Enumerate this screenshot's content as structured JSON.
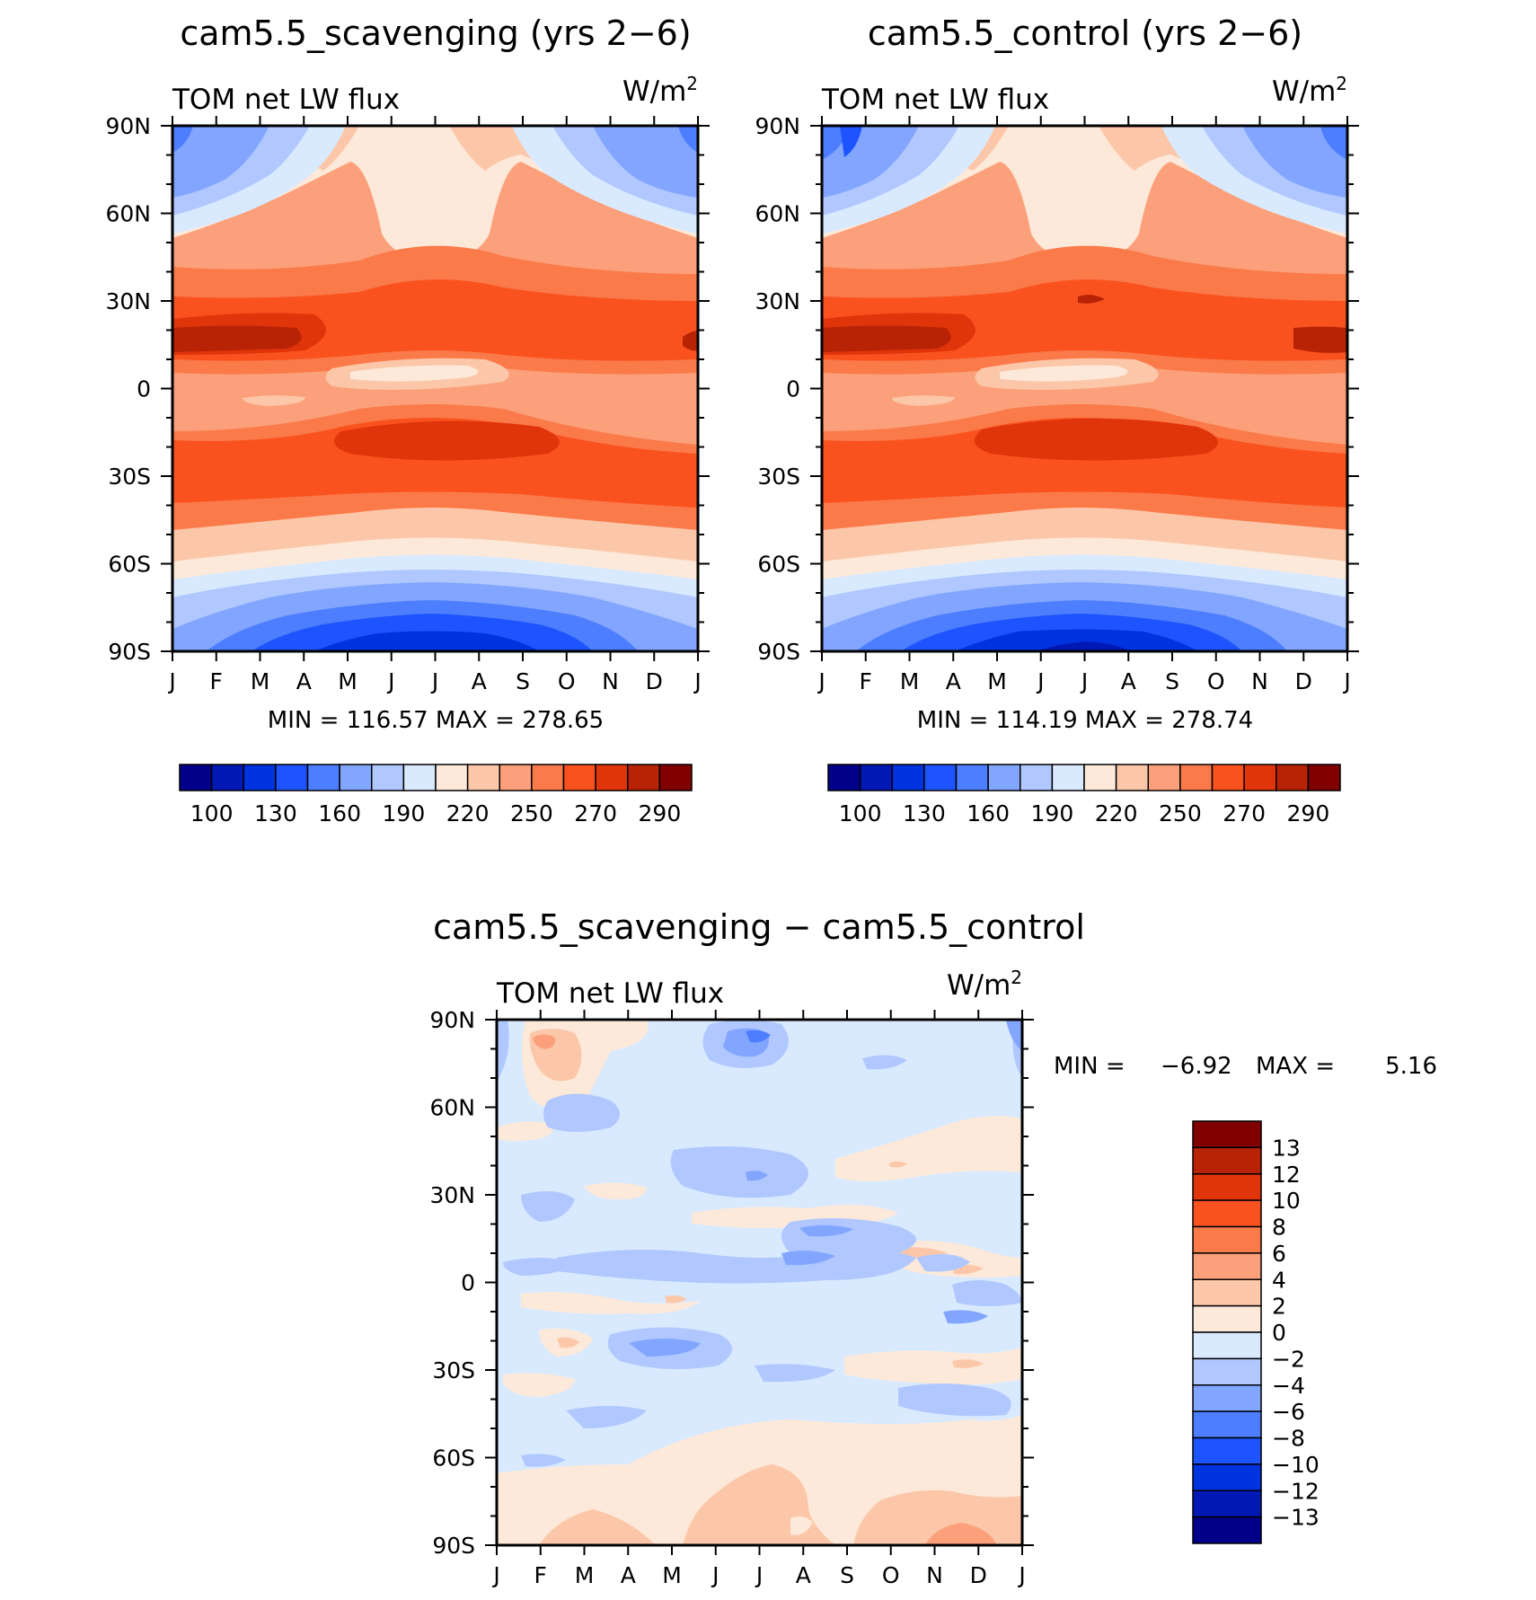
{
  "months": [
    "J",
    "F",
    "M",
    "A",
    "M",
    "J",
    "J",
    "A",
    "S",
    "O",
    "N",
    "D",
    "J"
  ],
  "lat_labels": [
    "90N",
    "60N",
    "30N",
    "0",
    "30S",
    "60S",
    "90S"
  ],
  "absolute_palette": [
    "#00008b",
    "#0019b4",
    "#0033e0",
    "#1e54ff",
    "#4d7eff",
    "#82a5ff",
    "#b0c8ff",
    "#d9eaff",
    "#fde9d9",
    "#fcc7a9",
    "#fba07a",
    "#fb7a4a",
    "#fa521f",
    "#e0340a",
    "#b82306",
    "#800000"
  ],
  "diff_palette": [
    "#00008b",
    "#0019b4",
    "#0033e0",
    "#1e54ff",
    "#4d7eff",
    "#82a5ff",
    "#b0c8ff",
    "#d9eaff",
    "#fde9d9",
    "#fcc7a9",
    "#fba07a",
    "#fb7a4a",
    "#fa521f",
    "#e0340a",
    "#b82306",
    "#800000"
  ],
  "chart_data": [
    {
      "type": "heatmap",
      "title": "cam5.5_scavenging (yrs 2−6)",
      "left_label": "TOM net LW flux",
      "units_base": "W/m",
      "units_exp": "2",
      "x_categories": [
        "J",
        "F",
        "M",
        "A",
        "M",
        "J",
        "J",
        "A",
        "S",
        "O",
        "N",
        "D",
        "J"
      ],
      "ylim": [
        -90,
        90
      ],
      "stats": "MIN = 116.57 MAX = 278.65",
      "colorbar_labels": [
        "100",
        "130",
        "160",
        "190",
        "220",
        "250",
        "270",
        "290"
      ]
    },
    {
      "type": "heatmap",
      "title": "cam5.5_control (yrs 2−6)",
      "left_label": "TOM net LW flux",
      "units_base": "W/m",
      "units_exp": "2",
      "x_categories": [
        "J",
        "F",
        "M",
        "A",
        "M",
        "J",
        "J",
        "A",
        "S",
        "O",
        "N",
        "D",
        "J"
      ],
      "ylim": [
        -90,
        90
      ],
      "stats": "MIN = 114.19 MAX = 278.74",
      "colorbar_labels": [
        "100",
        "130",
        "160",
        "190",
        "220",
        "250",
        "270",
        "290"
      ]
    },
    {
      "type": "heatmap",
      "title": "cam5.5_scavenging − cam5.5_control",
      "left_label": "TOM net LW flux",
      "units_base": "W/m",
      "units_exp": "2",
      "x_categories": [
        "J",
        "F",
        "M",
        "A",
        "M",
        "J",
        "J",
        "A",
        "S",
        "O",
        "N",
        "D",
        "J"
      ],
      "ylim": [
        -90,
        90
      ],
      "stats_min_label": "MIN =",
      "stats_min_value": "−6.92",
      "stats_max_label": "MAX =",
      "stats_max_value": "5.16",
      "colorbar_labels": [
        "13",
        "12",
        "10",
        "8",
        "6",
        "4",
        "2",
        "0",
        "−2",
        "−4",
        "−6",
        "−8",
        "−10",
        "−12",
        "−13"
      ]
    }
  ]
}
